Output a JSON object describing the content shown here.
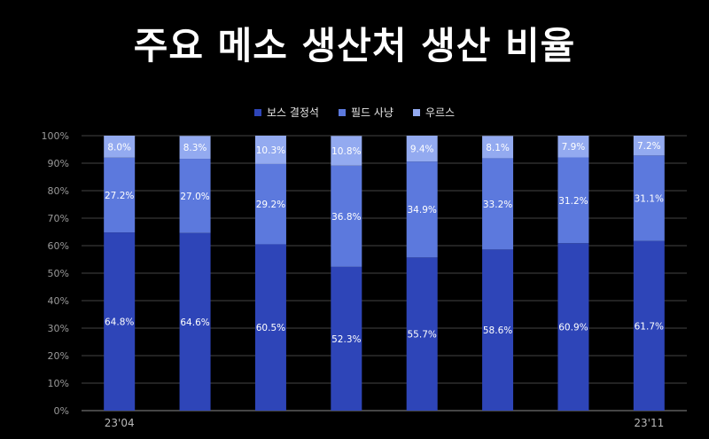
{
  "title": "주요 메소 생산처 생산 비율",
  "colors": {
    "background": "#000000",
    "boss": "#2e45b8",
    "field": "#5c79dd",
    "rest": "#93aaf0",
    "grid": "#444444",
    "axis": "#8a8a8a"
  },
  "chart_data": {
    "type": "bar",
    "stacked": true,
    "title": "주요 메소 생산처 생산 비율",
    "legend_position": "top-center",
    "categories": [
      "23'04",
      "",
      "",
      "",
      "",
      "",
      "",
      "23'11"
    ],
    "series": [
      {
        "name": "보스 결정석",
        "color": "#2e45b8",
        "values": [
          64.8,
          64.6,
          60.5,
          52.3,
          55.7,
          58.6,
          60.9,
          61.7
        ]
      },
      {
        "name": "필드 사냥",
        "color": "#5c79dd",
        "values": [
          27.2,
          27.0,
          29.2,
          36.8,
          34.9,
          33.2,
          31.2,
          31.1
        ]
      },
      {
        "name": "우르스",
        "color": "#93aaf0",
        "values": [
          8.0,
          8.3,
          10.3,
          10.8,
          9.4,
          8.1,
          7.9,
          7.2
        ]
      }
    ],
    "data_labels": [
      [
        "64.8%",
        "64.6%",
        "60.5%",
        "52.3%",
        "55.7%",
        "58.6%",
        "60.9%",
        "61.7%"
      ],
      [
        "27.2%",
        "27.0%",
        "29.2%",
        "36.8%",
        "34.9%",
        "33.2%",
        "31.2%",
        "31.1%"
      ],
      [
        "8.0%",
        "8.3%",
        "10.3%",
        "10.8%",
        "9.4%",
        "8.1%",
        "7.9%",
        "7.2%"
      ]
    ],
    "ylim": [
      0,
      100
    ],
    "yticks": [
      "0%",
      "10%",
      "20%",
      "30%",
      "40%",
      "50%",
      "60%",
      "70%",
      "80%",
      "90%",
      "100%"
    ],
    "grid": true
  }
}
